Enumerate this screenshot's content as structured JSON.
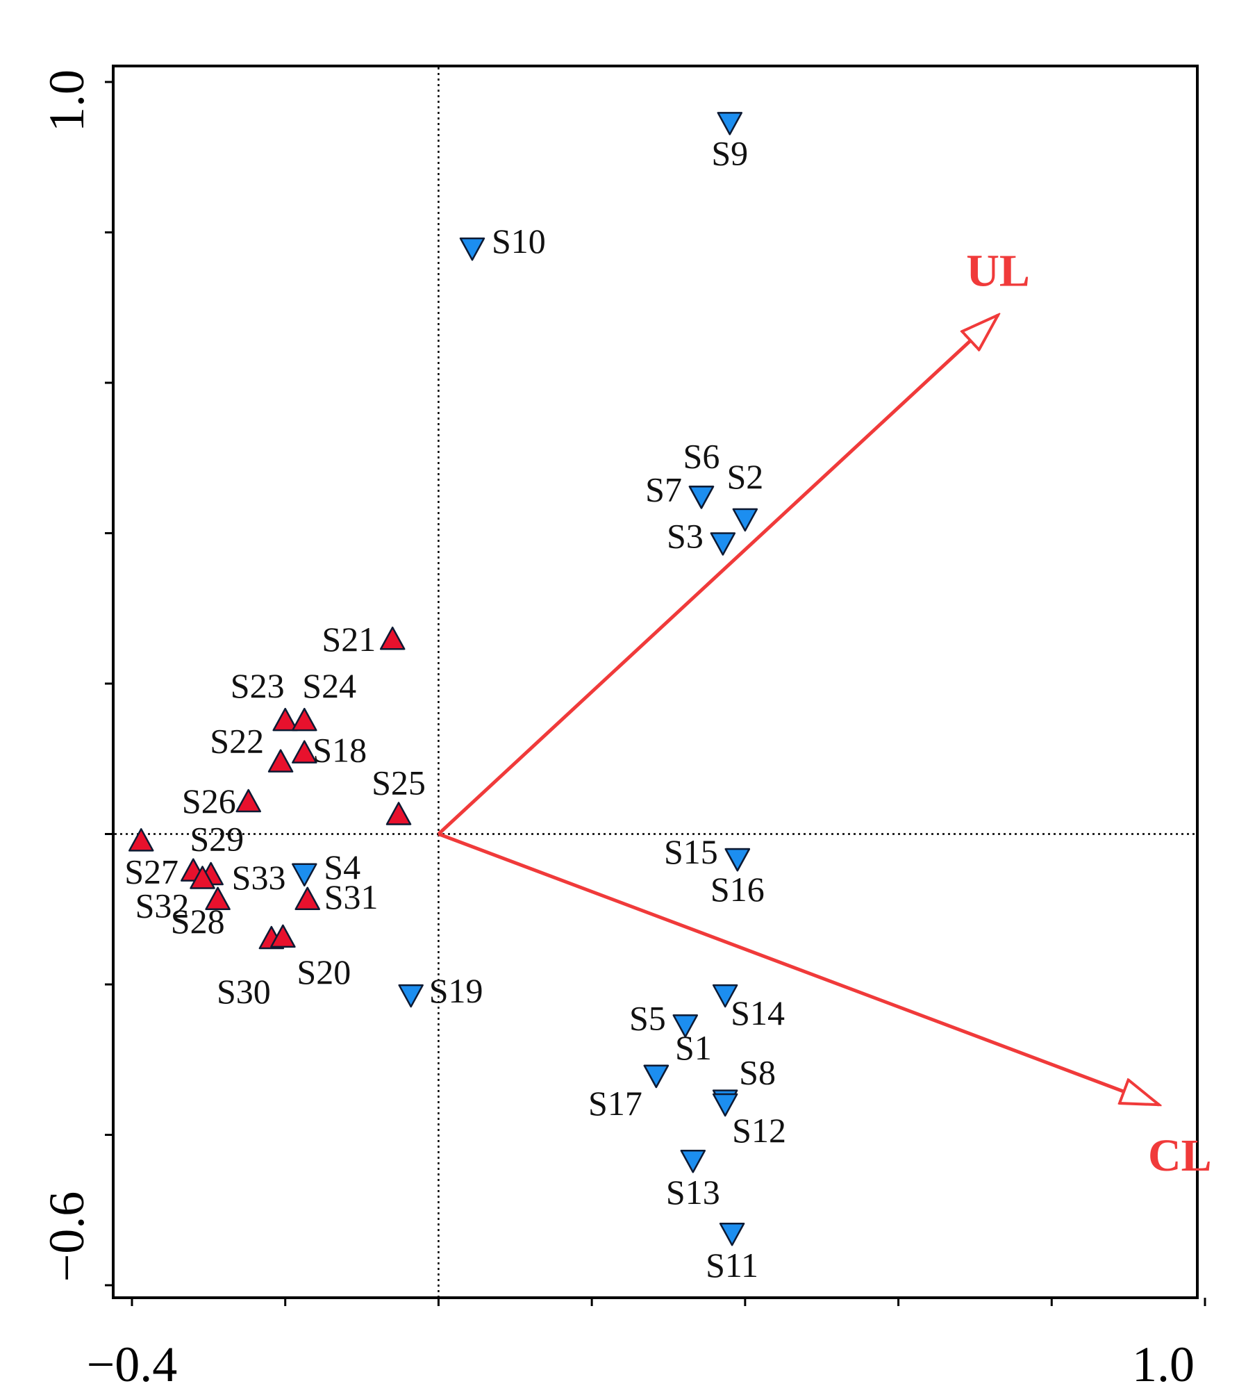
{
  "chart_data": {
    "type": "scatter",
    "title": "",
    "xlabel": "",
    "ylabel": "",
    "xlim": [
      -0.4,
      1.0
    ],
    "ylim": [
      -0.6,
      1.0
    ],
    "x_tick_labels": [
      "−0.4",
      "1.0"
    ],
    "y_tick_labels": [
      "1.0",
      "−0.6"
    ],
    "zero_lines": true,
    "colors": {
      "group_a_fill": "#e8112d",
      "group_b_fill": "#1c8ef0",
      "vector": "#f03a3a",
      "axis": "#000000"
    },
    "vectors": [
      {
        "label": "UL",
        "x": 0.73,
        "y": 0.69
      },
      {
        "label": "CL",
        "x": 0.94,
        "y": -0.36
      }
    ],
    "series": [
      {
        "name": "group_b",
        "marker": "triangle-down",
        "points": [
          {
            "label": "S9",
            "x": 0.38,
            "y": 0.947
          },
          {
            "label": "S10",
            "x": 0.044,
            "y": 0.78
          },
          {
            "label": "S6",
            "x": 0.343,
            "y": 0.45
          },
          {
            "label": "S7",
            "x": 0.343,
            "y": 0.45
          },
          {
            "label": "S2",
            "x": 0.4,
            "y": 0.42
          },
          {
            "label": "S3",
            "x": 0.371,
            "y": 0.388
          },
          {
            "label": "S15",
            "x": 0.39,
            "y": -0.032
          },
          {
            "label": "S16",
            "x": 0.39,
            "y": -0.032
          },
          {
            "label": "S4",
            "x": -0.175,
            "y": -0.052
          },
          {
            "label": "S19",
            "x": -0.036,
            "y": -0.213
          },
          {
            "label": "S14",
            "x": 0.374,
            "y": -0.213
          },
          {
            "label": "S5",
            "x": 0.322,
            "y": -0.253
          },
          {
            "label": "S1",
            "x": 0.284,
            "y": -0.32
          },
          {
            "label": "S8",
            "x": 0.374,
            "y": -0.353
          },
          {
            "label": "S12",
            "x": 0.374,
            "y": -0.358
          },
          {
            "label": "S17",
            "x": 0.284,
            "y": -0.32
          },
          {
            "label": "S13",
            "x": 0.332,
            "y": -0.433
          },
          {
            "label": "S11",
            "x": 0.383,
            "y": -0.53
          }
        ]
      },
      {
        "name": "group_a",
        "marker": "triangle-up",
        "points": [
          {
            "label": "S21",
            "x": -0.06,
            "y": 0.258
          },
          {
            "label": "S23",
            "x": -0.2,
            "y": 0.15
          },
          {
            "label": "S24",
            "x": -0.175,
            "y": 0.15
          },
          {
            "label": "S22",
            "x": -0.206,
            "y": 0.095
          },
          {
            "label": "S18",
            "x": -0.175,
            "y": 0.107
          },
          {
            "label": "S25",
            "x": -0.052,
            "y": 0.025
          },
          {
            "label": "S26",
            "x": -0.248,
            "y": 0.042
          },
          {
            "label": "S27",
            "x": -0.388,
            "y": -0.01
          },
          {
            "label": "S29",
            "x": -0.32,
            "y": -0.05
          },
          {
            "label": "S33",
            "x": -0.297,
            "y": -0.055
          },
          {
            "label": "S32",
            "x": -0.308,
            "y": -0.06
          },
          {
            "label": "S28",
            "x": -0.288,
            "y": -0.088
          },
          {
            "label": "S31",
            "x": -0.171,
            "y": -0.088
          },
          {
            "label": "S30",
            "x": -0.218,
            "y": -0.14
          },
          {
            "label": "S20",
            "x": -0.203,
            "y": -0.138
          }
        ]
      }
    ]
  }
}
